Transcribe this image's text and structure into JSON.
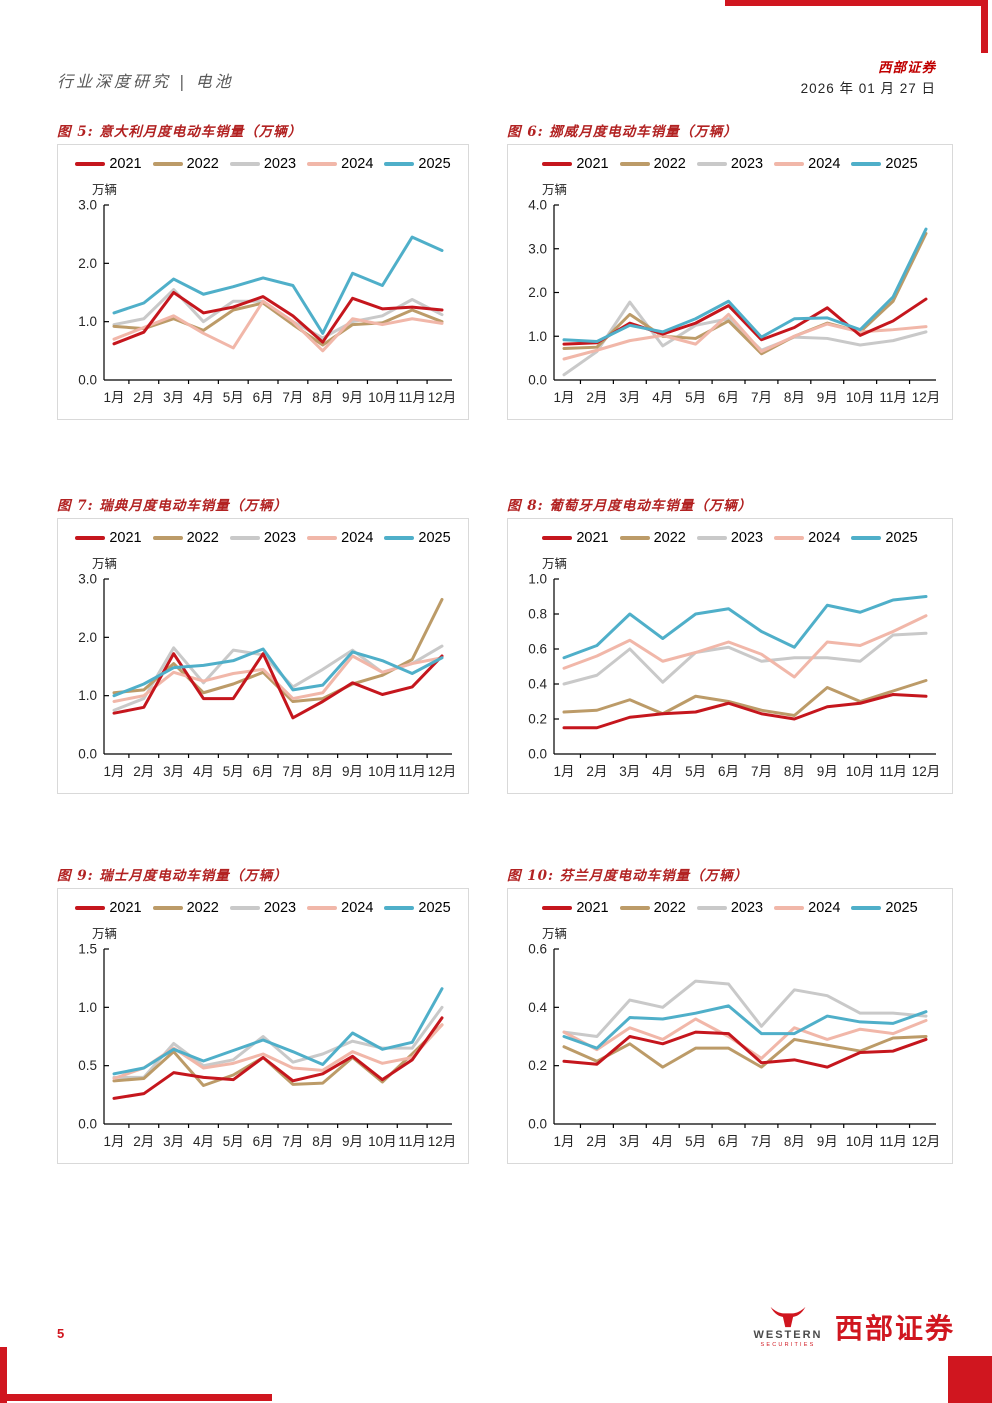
{
  "header": {
    "left_title": "行业深度研究 | 电池",
    "brand_name": "西部证券",
    "date": "2026 年 01 月 27 日"
  },
  "footer": {
    "page_number": "5",
    "logo_en_line1": "WESTERN",
    "logo_en_line2": "SECURITIES",
    "logo_cn": "西部证券"
  },
  "colors": {
    "accent_red": "#d0161f",
    "title_red": "#b22222",
    "series": {
      "2021": "#c5161d",
      "2022": "#bc9b68",
      "2023": "#c9c9c9",
      "2024": "#f1b7a9",
      "2025": "#4fafc9"
    }
  },
  "chart_data": [
    {
      "type": "line",
      "title": "图 5: 意大利月度电动车销量（万辆）",
      "unit": "万辆",
      "categories": [
        "1月",
        "2月",
        "3月",
        "4月",
        "5月",
        "6月",
        "7月",
        "8月",
        "9月",
        "10月",
        "11月",
        "12月"
      ],
      "ylim": [
        0,
        3
      ],
      "yticks": [
        0,
        1,
        2,
        3
      ],
      "legend_position": "top",
      "grid": false,
      "series": [
        {
          "name": "2021",
          "values": [
            0.62,
            0.82,
            1.5,
            1.15,
            1.25,
            1.43,
            1.1,
            0.65,
            1.4,
            1.22,
            1.25,
            1.2
          ]
        },
        {
          "name": "2022",
          "values": [
            0.92,
            0.88,
            1.05,
            0.85,
            1.2,
            1.32,
            0.95,
            0.6,
            0.95,
            0.98,
            1.2,
            1.0
          ]
        },
        {
          "name": "2023",
          "values": [
            0.95,
            1.05,
            1.55,
            1.0,
            1.35,
            1.35,
            1.0,
            0.72,
            1.0,
            1.1,
            1.38,
            1.12
          ]
        },
        {
          "name": "2024",
          "values": [
            0.7,
            0.9,
            1.1,
            0.8,
            0.55,
            1.35,
            1.0,
            0.5,
            1.05,
            0.95,
            1.05,
            0.97
          ]
        },
        {
          "name": "2025",
          "values": [
            1.15,
            1.32,
            1.73,
            1.47,
            1.6,
            1.75,
            1.62,
            0.8,
            1.83,
            1.62,
            2.45,
            2.22
          ]
        }
      ]
    },
    {
      "type": "line",
      "title": "图 6: 挪威月度电动车销量（万辆）",
      "unit": "万辆",
      "categories": [
        "1月",
        "2月",
        "3月",
        "4月",
        "5月",
        "6月",
        "7月",
        "8月",
        "9月",
        "10月",
        "11月",
        "12月"
      ],
      "ylim": [
        0,
        4
      ],
      "yticks": [
        0,
        1,
        2,
        3,
        4
      ],
      "legend_position": "top",
      "grid": false,
      "series": [
        {
          "name": "2021",
          "values": [
            0.82,
            0.85,
            1.3,
            1.05,
            1.3,
            1.7,
            0.92,
            1.2,
            1.65,
            1.02,
            1.35,
            1.85
          ]
        },
        {
          "name": "2022",
          "values": [
            0.72,
            0.75,
            1.5,
            1.0,
            0.95,
            1.35,
            0.6,
            1.0,
            1.3,
            1.1,
            1.8,
            3.35
          ]
        },
        {
          "name": "2023",
          "values": [
            0.12,
            0.65,
            1.78,
            0.78,
            1.25,
            1.4,
            0.68,
            0.98,
            0.95,
            0.8,
            0.9,
            1.1
          ]
        },
        {
          "name": "2024",
          "values": [
            0.48,
            0.68,
            0.9,
            1.02,
            0.82,
            1.5,
            0.65,
            1.0,
            1.28,
            1.1,
            1.15,
            1.22
          ]
        },
        {
          "name": "2025",
          "values": [
            0.92,
            0.88,
            1.25,
            1.1,
            1.4,
            1.8,
            0.98,
            1.4,
            1.42,
            1.15,
            1.9,
            3.45
          ]
        }
      ]
    },
    {
      "type": "line",
      "title": "图 7: 瑞典月度电动车销量（万辆）",
      "unit": "万辆",
      "categories": [
        "1月",
        "2月",
        "3月",
        "4月",
        "5月",
        "6月",
        "7月",
        "8月",
        "9月",
        "10月",
        "11月",
        "12月"
      ],
      "ylim": [
        0,
        3
      ],
      "yticks": [
        0,
        1,
        2,
        3
      ],
      "legend_position": "top",
      "grid": false,
      "series": [
        {
          "name": "2021",
          "values": [
            0.7,
            0.8,
            1.72,
            0.95,
            0.95,
            1.72,
            0.62,
            0.9,
            1.22,
            1.02,
            1.15,
            1.68
          ]
        },
        {
          "name": "2022",
          "values": [
            1.05,
            1.1,
            1.55,
            1.05,
            1.2,
            1.4,
            0.9,
            0.95,
            1.2,
            1.35,
            1.62,
            2.65
          ]
        },
        {
          "name": "2023",
          "values": [
            0.75,
            0.95,
            1.82,
            1.22,
            1.78,
            1.7,
            1.15,
            1.45,
            1.78,
            1.4,
            1.55,
            1.85
          ]
        },
        {
          "name": "2024",
          "values": [
            0.9,
            1.0,
            1.4,
            1.25,
            1.38,
            1.45,
            0.95,
            1.05,
            1.68,
            1.4,
            1.55,
            1.65
          ]
        },
        {
          "name": "2025",
          "values": [
            1.0,
            1.2,
            1.48,
            1.52,
            1.6,
            1.8,
            1.1,
            1.18,
            1.75,
            1.6,
            1.38,
            1.65
          ]
        }
      ]
    },
    {
      "type": "line",
      "title": "图 8: 葡萄牙月度电动车销量（万辆）",
      "unit": "万辆",
      "categories": [
        "1月",
        "2月",
        "3月",
        "4月",
        "5月",
        "6月",
        "7月",
        "8月",
        "9月",
        "10月",
        "11月",
        "12月"
      ],
      "ylim": [
        0,
        1
      ],
      "yticks": [
        0,
        0.2,
        0.4,
        0.6,
        0.8,
        1.0
      ],
      "legend_position": "top",
      "grid": false,
      "series": [
        {
          "name": "2021",
          "values": [
            0.15,
            0.15,
            0.21,
            0.23,
            0.24,
            0.29,
            0.23,
            0.2,
            0.27,
            0.29,
            0.34,
            0.33
          ]
        },
        {
          "name": "2022",
          "values": [
            0.24,
            0.25,
            0.31,
            0.23,
            0.33,
            0.3,
            0.25,
            0.22,
            0.38,
            0.3,
            0.36,
            0.42
          ]
        },
        {
          "name": "2023",
          "values": [
            0.4,
            0.45,
            0.6,
            0.41,
            0.58,
            0.61,
            0.53,
            0.55,
            0.55,
            0.53,
            0.68,
            0.69
          ]
        },
        {
          "name": "2024",
          "values": [
            0.49,
            0.56,
            0.65,
            0.53,
            0.58,
            0.64,
            0.57,
            0.44,
            0.64,
            0.62,
            0.7,
            0.79
          ]
        },
        {
          "name": "2025",
          "values": [
            0.55,
            0.62,
            0.8,
            0.66,
            0.8,
            0.83,
            0.7,
            0.61,
            0.85,
            0.81,
            0.88,
            0.9
          ]
        }
      ]
    },
    {
      "type": "line",
      "title": "图 9: 瑞士月度电动车销量（万辆）",
      "unit": "万辆",
      "categories": [
        "1月",
        "2月",
        "3月",
        "4月",
        "5月",
        "6月",
        "7月",
        "8月",
        "9月",
        "10月",
        "11月",
        "12月"
      ],
      "ylim": [
        0,
        1.5
      ],
      "yticks": [
        0,
        0.5,
        1.0,
        1.5
      ],
      "legend_position": "top",
      "grid": false,
      "series": [
        {
          "name": "2021",
          "values": [
            0.22,
            0.26,
            0.44,
            0.4,
            0.38,
            0.57,
            0.37,
            0.43,
            0.58,
            0.38,
            0.55,
            0.91
          ]
        },
        {
          "name": "2022",
          "values": [
            0.37,
            0.39,
            0.62,
            0.33,
            0.42,
            0.57,
            0.34,
            0.35,
            0.57,
            0.36,
            0.6,
            0.85
          ]
        },
        {
          "name": "2023",
          "values": [
            0.4,
            0.4,
            0.69,
            0.5,
            0.55,
            0.75,
            0.53,
            0.6,
            0.71,
            0.65,
            0.65,
            1.0
          ]
        },
        {
          "name": "2024",
          "values": [
            0.39,
            0.48,
            0.65,
            0.48,
            0.52,
            0.6,
            0.48,
            0.46,
            0.62,
            0.52,
            0.57,
            0.85
          ]
        },
        {
          "name": "2025",
          "values": [
            0.43,
            0.48,
            0.64,
            0.54,
            0.63,
            0.72,
            0.62,
            0.51,
            0.78,
            0.64,
            0.7,
            1.16
          ]
        }
      ]
    },
    {
      "type": "line",
      "title": "图 10: 芬兰月度电动车销量（万辆）",
      "unit": "万辆",
      "categories": [
        "1月",
        "2月",
        "3月",
        "4月",
        "5月",
        "6月",
        "7月",
        "8月",
        "9月",
        "10月",
        "11月",
        "12月"
      ],
      "ylim": [
        0,
        0.6
      ],
      "yticks": [
        0,
        0.2,
        0.4,
        0.6
      ],
      "legend_position": "top",
      "grid": false,
      "series": [
        {
          "name": "2021",
          "values": [
            0.215,
            0.205,
            0.3,
            0.275,
            0.315,
            0.31,
            0.21,
            0.22,
            0.195,
            0.245,
            0.25,
            0.29
          ]
        },
        {
          "name": "2022",
          "values": [
            0.265,
            0.215,
            0.275,
            0.195,
            0.26,
            0.26,
            0.195,
            0.29,
            0.27,
            0.25,
            0.295,
            0.3
          ]
        },
        {
          "name": "2023",
          "values": [
            0.315,
            0.3,
            0.425,
            0.4,
            0.49,
            0.48,
            0.335,
            0.46,
            0.44,
            0.38,
            0.38,
            0.37
          ]
        },
        {
          "name": "2024",
          "values": [
            0.315,
            0.255,
            0.33,
            0.29,
            0.36,
            0.3,
            0.225,
            0.33,
            0.29,
            0.325,
            0.31,
            0.355
          ]
        },
        {
          "name": "2025",
          "values": [
            0.3,
            0.26,
            0.365,
            0.36,
            0.38,
            0.405,
            0.31,
            0.31,
            0.37,
            0.35,
            0.345,
            0.385
          ]
        }
      ]
    }
  ]
}
